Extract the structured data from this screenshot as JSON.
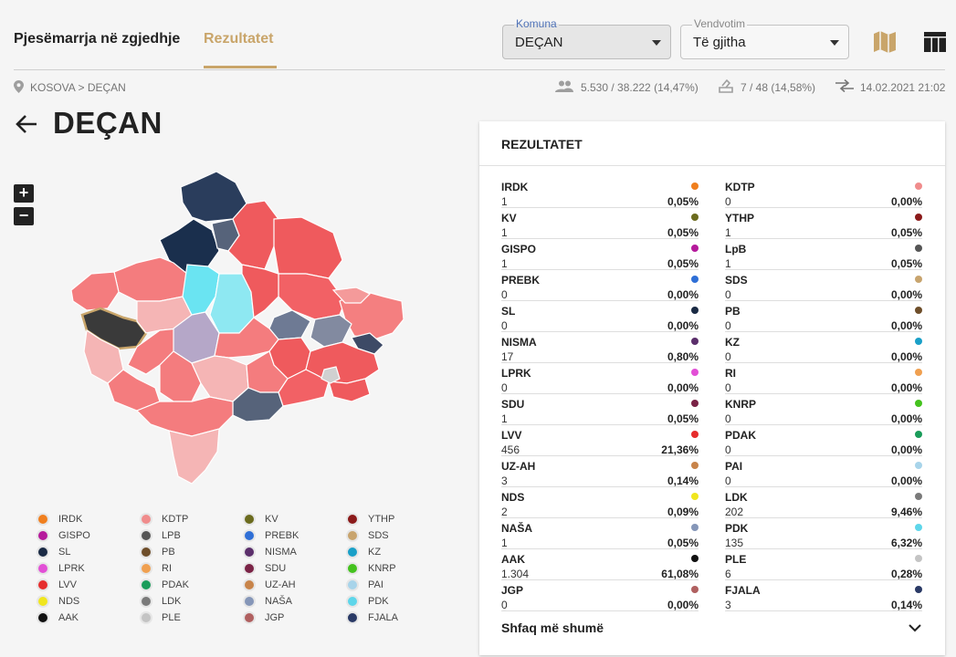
{
  "header": {
    "tab_participation": "Pjesëmarrja në zgjedhje",
    "tab_results": "Rezultatet",
    "municipality": {
      "label": "Komuna",
      "value": "DEÇAN"
    },
    "polling": {
      "label": "Vendvotim",
      "value": "Të gjitha"
    },
    "icons": [
      "map-icon",
      "table-icon"
    ]
  },
  "breadcrumb": {
    "root": "KOSOVA",
    "separator": ">",
    "current": "DEÇAN"
  },
  "stats": {
    "turnout": "5.530 / 38.222 (14,47%)",
    "stations": "7 / 48 (14,58%)",
    "updated": "14.02.2021 21:02"
  },
  "page": {
    "title": "DEÇAN"
  },
  "map": {
    "zoom_in": "+",
    "zoom_out": "−"
  },
  "legend": [
    {
      "name": "IRDK",
      "color": "#f07f1e"
    },
    {
      "name": "KDTP",
      "color": "#f08c8c"
    },
    {
      "name": "KV",
      "color": "#6b6b1e"
    },
    {
      "name": "YTHP",
      "color": "#8b1a1a"
    },
    {
      "name": "GISPO",
      "color": "#b5199b"
    },
    {
      "name": "LPB",
      "color": "#555555"
    },
    {
      "name": "PREBK",
      "color": "#2f6fd6"
    },
    {
      "name": "SDS",
      "color": "#c8a46e"
    },
    {
      "name": "SL",
      "color": "#1a2a44"
    },
    {
      "name": "PB",
      "color": "#6e4e2a"
    },
    {
      "name": "NISMA",
      "color": "#5b2f6b"
    },
    {
      "name": "KZ",
      "color": "#1aa0c8"
    },
    {
      "name": "LPRK",
      "color": "#e24fd6"
    },
    {
      "name": "RI",
      "color": "#f0a050"
    },
    {
      "name": "SDU",
      "color": "#7a2346"
    },
    {
      "name": "KNRP",
      "color": "#44c21e"
    },
    {
      "name": "LVV",
      "color": "#e62d2d"
    },
    {
      "name": "PDAK",
      "color": "#1a9c5a"
    },
    {
      "name": "UZ-AH",
      "color": "#c8844a"
    },
    {
      "name": "PAI",
      "color": "#a8d4ea"
    },
    {
      "name": "NDS",
      "color": "#f0e61e"
    },
    {
      "name": "LDK",
      "color": "#7a7a7a"
    },
    {
      "name": "NAŠA",
      "color": "#8596b8"
    },
    {
      "name": "PDK",
      "color": "#5ed6ea"
    },
    {
      "name": "AAK",
      "color": "#111111"
    },
    {
      "name": "PLE",
      "color": "#c4c4c4"
    },
    {
      "name": "JGP",
      "color": "#b06060"
    },
    {
      "name": "FJALA",
      "color": "#2a3a66"
    }
  ],
  "results": {
    "title": "REZULTATET",
    "left": [
      {
        "name": "IRDK",
        "votes": "1",
        "pct": "0,05%",
        "color": "#f07f1e"
      },
      {
        "name": "KV",
        "votes": "1",
        "pct": "0,05%",
        "color": "#6b6b1e"
      },
      {
        "name": "GISPO",
        "votes": "1",
        "pct": "0,05%",
        "color": "#b5199b"
      },
      {
        "name": "PREBK",
        "votes": "0",
        "pct": "0,00%",
        "color": "#2f6fd6"
      },
      {
        "name": "SL",
        "votes": "0",
        "pct": "0,00%",
        "color": "#1a2a44"
      },
      {
        "name": "NISMA",
        "votes": "17",
        "pct": "0,80%",
        "color": "#5b2f6b"
      },
      {
        "name": "LPRK",
        "votes": "0",
        "pct": "0,00%",
        "color": "#e24fd6"
      },
      {
        "name": "SDU",
        "votes": "1",
        "pct": "0,05%",
        "color": "#7a2346"
      },
      {
        "name": "LVV",
        "votes": "456",
        "pct": "21,36%",
        "color": "#e62d2d"
      },
      {
        "name": "UZ-AH",
        "votes": "3",
        "pct": "0,14%",
        "color": "#c8844a"
      },
      {
        "name": "NDS",
        "votes": "2",
        "pct": "0,09%",
        "color": "#f0e61e"
      },
      {
        "name": "NAŠA",
        "votes": "1",
        "pct": "0,05%",
        "color": "#8596b8"
      },
      {
        "name": "AAK",
        "votes": "1.304",
        "pct": "61,08%",
        "color": "#111111"
      },
      {
        "name": "JGP",
        "votes": "0",
        "pct": "0,00%",
        "color": "#b06060"
      }
    ],
    "right": [
      {
        "name": "KDTP",
        "votes": "0",
        "pct": "0,00%",
        "color": "#f08c8c"
      },
      {
        "name": "YTHP",
        "votes": "1",
        "pct": "0,05%",
        "color": "#8b1a1a"
      },
      {
        "name": "LpB",
        "votes": "1",
        "pct": "0,05%",
        "color": "#555555"
      },
      {
        "name": "SDS",
        "votes": "0",
        "pct": "0,00%",
        "color": "#c8a46e"
      },
      {
        "name": "PB",
        "votes": "0",
        "pct": "0,00%",
        "color": "#6e4e2a"
      },
      {
        "name": "KZ",
        "votes": "0",
        "pct": "0,00%",
        "color": "#1aa0c8"
      },
      {
        "name": "RI",
        "votes": "0",
        "pct": "0,00%",
        "color": "#f0a050"
      },
      {
        "name": "KNRP",
        "votes": "0",
        "pct": "0,00%",
        "color": "#44c21e"
      },
      {
        "name": "PDAK",
        "votes": "0",
        "pct": "0,00%",
        "color": "#1a9c5a"
      },
      {
        "name": "PAI",
        "votes": "0",
        "pct": "0,00%",
        "color": "#a8d4ea"
      },
      {
        "name": "LDK",
        "votes": "202",
        "pct": "9,46%",
        "color": "#7a7a7a"
      },
      {
        "name": "PDK",
        "votes": "135",
        "pct": "6,32%",
        "color": "#5ed6ea"
      },
      {
        "name": "PLE",
        "votes": "6",
        "pct": "0,28%",
        "color": "#c4c4c4"
      },
      {
        "name": "FJALA",
        "votes": "3",
        "pct": "0,14%",
        "color": "#2a3a66"
      }
    ],
    "show_more": "Shfaq më shumë"
  }
}
